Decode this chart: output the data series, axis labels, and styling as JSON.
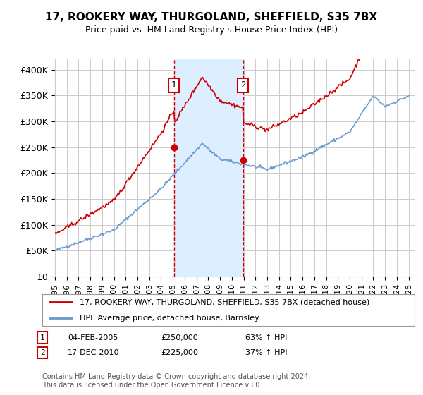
{
  "title": "17, ROOKERY WAY, THURGOLAND, SHEFFIELD, S35 7BX",
  "subtitle": "Price paid vs. HM Land Registry's House Price Index (HPI)",
  "xlabel": "",
  "ylabel": "",
  "ylim": [
    0,
    420000
  ],
  "yticks": [
    0,
    50000,
    100000,
    150000,
    200000,
    250000,
    300000,
    350000,
    400000
  ],
  "ytick_labels": [
    "£0",
    "£50K",
    "£100K",
    "£150K",
    "£200K",
    "£250K",
    "£300K",
    "£350K",
    "£400K"
  ],
  "xlim_start": 1995,
  "xlim_end": 2025.5,
  "transaction1_date": 2005.09,
  "transaction1_price": 250000,
  "transaction2_date": 2010.96,
  "transaction2_price": 225000,
  "vline1_x": 2005.09,
  "vline2_x": 2010.96,
  "legend_line1": "17, ROOKERY WAY, THURGOLAND, SHEFFIELD, S35 7BX (detached house)",
  "legend_line2": "HPI: Average price, detached house, Barnsley",
  "table_row1": [
    "1",
    "04-FEB-2005",
    "£250,000",
    "63% ↑ HPI"
  ],
  "table_row2": [
    "2",
    "17-DEC-2010",
    "£225,000",
    "37% ↑ HPI"
  ],
  "footnote": "Contains HM Land Registry data © Crown copyright and database right 2024.\nThis data is licensed under the Open Government Licence v3.0.",
  "line_red_color": "#cc0000",
  "line_blue_color": "#6699cc",
  "shade_color": "#ddeeff",
  "background_color": "#ffffff",
  "grid_color": "#cccccc"
}
